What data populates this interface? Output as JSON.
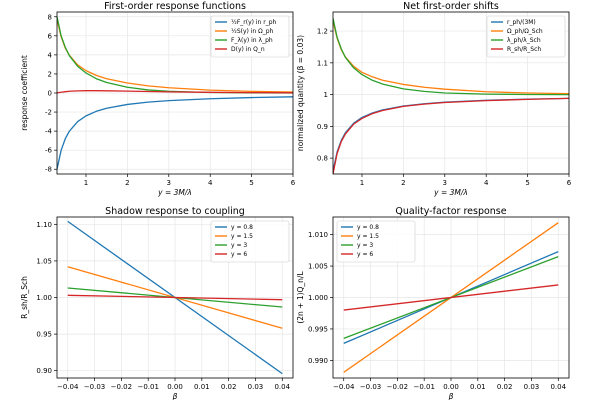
{
  "chart_data": [
    {
      "type": "line",
      "title": "First-order response functions",
      "xlabel": "y = 3M/λ",
      "ylabel": "response coefficient",
      "xlim": [
        0.3,
        6
      ],
      "ylim": [
        -8.5,
        8.5
      ],
      "xticks": [
        1,
        2,
        3,
        4,
        5,
        6
      ],
      "yticks": [
        -8,
        -6,
        -4,
        -2,
        0,
        2,
        4,
        6,
        8
      ],
      "grid": true,
      "legend": "top-right",
      "x": [
        0.3,
        0.4,
        0.5,
        0.6,
        0.8,
        1.0,
        1.25,
        1.5,
        2.0,
        2.5,
        3.0,
        4.0,
        5.0,
        6.0
      ],
      "series": [
        {
          "name": "½F_r(y) in r_ph",
          "color": "#1f77b4",
          "values": [
            -8.0,
            -6.0,
            -4.8,
            -4.0,
            -3.0,
            -2.4,
            -1.92,
            -1.6,
            -1.2,
            -0.96,
            -0.8,
            -0.6,
            -0.48,
            -0.4
          ]
        },
        {
          "name": "½S(y) in Ω_ph",
          "color": "#ff7f0e",
          "values": [
            7.7,
            5.9,
            4.7,
            3.95,
            2.95,
            2.35,
            1.85,
            1.5,
            1.05,
            0.75,
            0.55,
            0.3,
            0.17,
            0.1
          ]
        },
        {
          "name": "F_λ(y) in λ_ph",
          "color": "#2ca02c",
          "values": [
            8.0,
            6.0,
            4.8,
            3.9,
            2.8,
            2.1,
            1.5,
            1.1,
            0.6,
            0.32,
            0.18,
            0.05,
            0.01,
            0.0
          ]
        },
        {
          "name": "D(y) in Q_n",
          "color": "#d62728",
          "values": [
            0.02,
            0.08,
            0.14,
            0.18,
            0.22,
            0.24,
            0.24,
            0.23,
            0.2,
            0.16,
            0.12,
            0.07,
            0.04,
            0.02
          ]
        }
      ]
    },
    {
      "type": "line",
      "title": "Net first-order shifts",
      "xlabel": "y = 3M/λ",
      "ylabel": "normalized quantity (β = 0.03)",
      "xlim": [
        0.3,
        6
      ],
      "ylim": [
        0.75,
        1.26
      ],
      "xticks": [
        1,
        2,
        3,
        4,
        5,
        6
      ],
      "yticks": [
        0.8,
        0.9,
        1.0,
        1.1,
        1.2
      ],
      "grid": true,
      "legend": "top-right",
      "x": [
        0.3,
        0.4,
        0.5,
        0.6,
        0.8,
        1.0,
        1.25,
        1.5,
        2.0,
        2.5,
        3.0,
        4.0,
        5.0,
        6.0
      ],
      "series": [
        {
          "name": "r_ph/(3M)",
          "color": "#1f77b4",
          "values": [
            0.76,
            0.82,
            0.856,
            0.88,
            0.91,
            0.928,
            0.942,
            0.952,
            0.964,
            0.971,
            0.976,
            0.982,
            0.9856,
            0.988
          ]
        },
        {
          "name": "Ω_ph/Ω_Sch",
          "color": "#ff7f0e",
          "values": [
            1.231,
            1.177,
            1.141,
            1.118,
            1.089,
            1.07,
            1.056,
            1.045,
            1.032,
            1.023,
            1.017,
            1.009,
            1.005,
            1.003
          ]
        },
        {
          "name": "λ_ph/λ_Sch",
          "color": "#2ca02c",
          "values": [
            1.24,
            1.18,
            1.144,
            1.117,
            1.084,
            1.063,
            1.045,
            1.033,
            1.018,
            1.01,
            1.005,
            1.0015,
            1.0003,
            1.0
          ]
        },
        {
          "name": "R_sh/R_Sch",
          "color": "#d62728",
          "values": [
            0.75,
            0.815,
            0.852,
            0.876,
            0.907,
            0.925,
            0.94,
            0.95,
            0.963,
            0.97,
            0.975,
            0.981,
            0.985,
            0.988
          ]
        }
      ]
    },
    {
      "type": "line",
      "title": "Shadow response to coupling",
      "xlabel": "β",
      "ylabel": "R_sh/R_Sch",
      "xlim": [
        -0.044,
        0.044
      ],
      "ylim": [
        0.89,
        1.11
      ],
      "xticks": [
        -0.04,
        -0.03,
        -0.02,
        -0.01,
        0.0,
        0.01,
        0.02,
        0.03,
        0.04
      ],
      "xticklabels": [
        "−0.04",
        "−0.03",
        "−0.02",
        "−0.01",
        "0.00",
        "0.01",
        "0.02",
        "0.03",
        "0.04"
      ],
      "yticks": [
        0.9,
        0.95,
        1.0,
        1.05,
        1.1
      ],
      "yticklabels": [
        "0.90",
        "0.95",
        "1.00",
        "1.05",
        "1.10"
      ],
      "grid": true,
      "legend": "top-right",
      "x": [
        -0.04,
        0.04
      ],
      "series": [
        {
          "name": "y = 0.8",
          "color": "#1f77b4",
          "values": [
            1.104,
            0.896
          ]
        },
        {
          "name": "y = 1.5",
          "color": "#ff7f0e",
          "values": [
            1.042,
            0.958
          ]
        },
        {
          "name": "y = 3",
          "color": "#2ca02c",
          "values": [
            1.013,
            0.987
          ]
        },
        {
          "name": "y = 6",
          "color": "#d62728",
          "values": [
            1.003,
            0.997
          ]
        }
      ]
    },
    {
      "type": "line",
      "title": "Quality-factor response",
      "xlabel": "β",
      "ylabel": "(2n + 1)Q_n/L",
      "xlim": [
        -0.044,
        0.044
      ],
      "ylim": [
        0.9872,
        1.0128
      ],
      "xticks": [
        -0.04,
        -0.03,
        -0.02,
        -0.01,
        0.0,
        0.01,
        0.02,
        0.03,
        0.04
      ],
      "xticklabels": [
        "−0.04",
        "−0.03",
        "−0.02",
        "−0.01",
        "0.00",
        "0.01",
        "0.02",
        "0.03",
        "0.04"
      ],
      "yticks": [
        0.99,
        0.995,
        1.0,
        1.005,
        1.01
      ],
      "yticklabels": [
        "0.990",
        "0.995",
        "1.000",
        "1.005",
        "1.010"
      ],
      "grid": true,
      "legend": "top-left",
      "x": [
        -0.04,
        0.04
      ],
      "series": [
        {
          "name": "y = 0.8",
          "color": "#1f77b4",
          "values": [
            0.9927,
            1.0073
          ]
        },
        {
          "name": "y = 1.5",
          "color": "#ff7f0e",
          "values": [
            0.9881,
            1.0119
          ]
        },
        {
          "name": "y = 3",
          "color": "#2ca02c",
          "values": [
            0.9935,
            1.0065
          ]
        },
        {
          "name": "y = 6",
          "color": "#d62728",
          "values": [
            0.998,
            1.002
          ]
        }
      ]
    }
  ]
}
